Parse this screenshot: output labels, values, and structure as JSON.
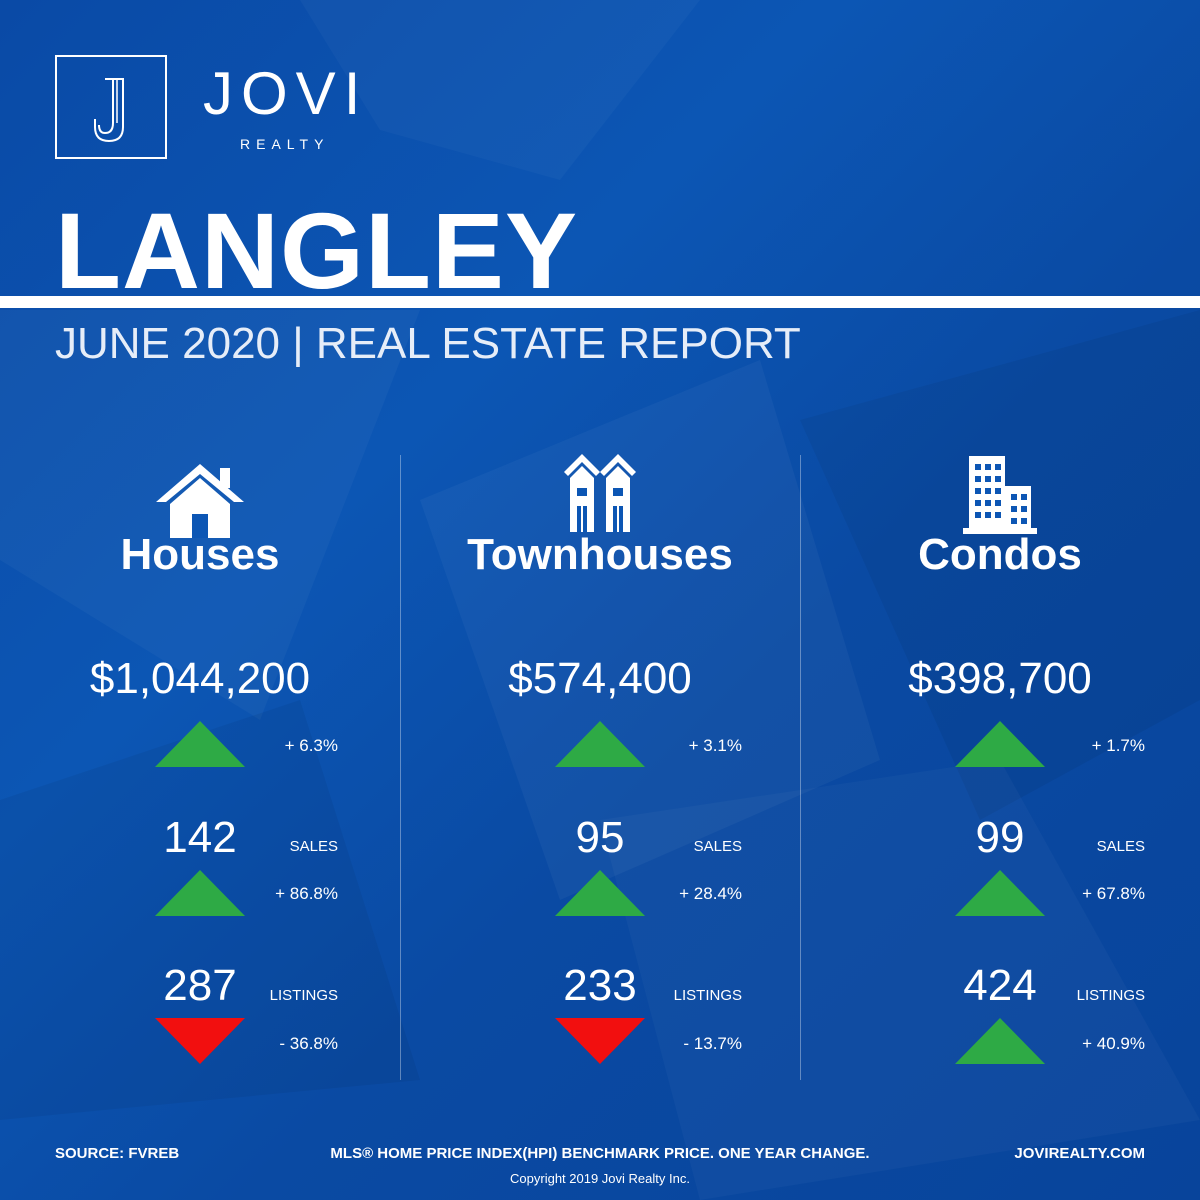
{
  "brand": {
    "name": "JOVI",
    "sub": "REALTY",
    "logo_letter": "J"
  },
  "city": "LANGLEY",
  "subtitle": "JUNE 2020 | REAL ESTATE REPORT",
  "colors": {
    "background": "#0c56b4",
    "up": "#2eaa45",
    "down": "#f20f0f"
  },
  "columns": [
    {
      "icon": "house-icon",
      "type": "Houses",
      "price": "$1,044,200",
      "price_change": {
        "dir": "up",
        "text": "+ 6.3%"
      },
      "sales": {
        "value": "142",
        "label": "SALES",
        "dir": "up",
        "text": "+ 86.8%"
      },
      "listings": {
        "value": "287",
        "label": "LISTINGS",
        "dir": "down",
        "text": "- 36.8%"
      }
    },
    {
      "icon": "townhouse-icon",
      "type": "Townhouses",
      "price": "$574,400",
      "price_change": {
        "dir": "up",
        "text": "+ 3.1%"
      },
      "sales": {
        "value": "95",
        "label": "SALES",
        "dir": "up",
        "text": "+ 28.4%"
      },
      "listings": {
        "value": "233",
        "label": "LISTINGS",
        "dir": "down",
        "text": "- 13.7%"
      }
    },
    {
      "icon": "condo-building-icon",
      "type": "Condos",
      "price": "$398,700",
      "price_change": {
        "dir": "up",
        "text": "+ 1.7%"
      },
      "sales": {
        "value": "99",
        "label": "SALES",
        "dir": "up",
        "text": "+ 67.8%"
      },
      "listings": {
        "value": "424",
        "label": "LISTINGS",
        "dir": "up",
        "text": "+ 40.9%"
      }
    }
  ],
  "footer": {
    "source": "SOURCE:  FVREB",
    "note": "MLS® HOME PRICE INDEX(HPI) BENCHMARK PRICE. ONE YEAR CHANGE.",
    "website": "JOVIREALTY.COM",
    "copyright": "Copyright 2019 Jovi Realty Inc."
  }
}
